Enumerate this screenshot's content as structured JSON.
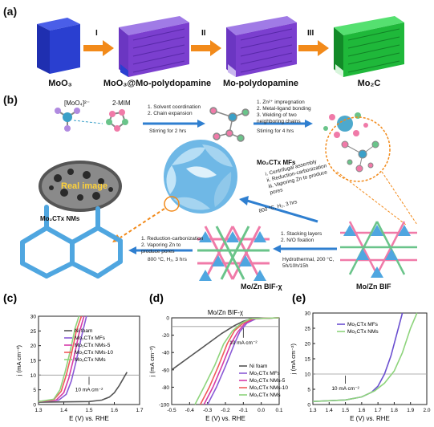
{
  "panel_a": {
    "label": "(a)",
    "steps": [
      {
        "label": "MoO₃",
        "color": "#2a3fd0"
      },
      {
        "label": "MoO₃@Mo-polydopamine",
        "color": "#7b3fcf"
      },
      {
        "label": "Mo-polydopamine",
        "color": "#7b3fcf"
      },
      {
        "label": "Mo₂C",
        "color": "#1fb83a"
      }
    ],
    "arrows": [
      "I",
      "II",
      "III"
    ],
    "arrow_color": "#f28a1a"
  },
  "panel_b": {
    "label": "(b)",
    "mo_ion": "[MoO₄]²⁻",
    "mim": "2-MIM",
    "step1": [
      "1.  Solvent coordination",
      "2.  Chain expansion"
    ],
    "step1_cond": "Stirring for 2 hrs",
    "step2": [
      "1.  Zn²⁺ impregnation",
      "2.  Metal-ligand bonding",
      "3.  Welding of two",
      "     neighboring chains"
    ],
    "step2_cond": "Stirring for 4 hrs",
    "mfs_label": "Mo₂CTx MFs",
    "assembly": [
      "i.  Centrifugal assembly",
      "ii. Reduction-carbonization",
      "iii. Vaporing Zn to produce",
      "     pores"
    ],
    "assembly_cond": "800 °C, H₂, 3 hrs",
    "real_image": "Real image",
    "nms_label": "Mo₂CTx NMs",
    "nms_steps": [
      "1.  Reduction-carbonization",
      "2.  Vaporing Zn to",
      "     produce pores"
    ],
    "nms_cond": "800 °C, H₂, 3 hrs",
    "stack_steps": [
      "1.  Stacking layers",
      "2.  N/O fixation"
    ],
    "hydro": [
      "Hydrothermal, 200 °C,",
      "5h/10h/15h"
    ],
    "bif_x": "Mo/Zn BIF-χ",
    "bif": "Mo/Zn BIF"
  },
  "chart_data": [
    {
      "panel": "(c)",
      "type": "line",
      "xlabel": "E (V) vs. RHE",
      "ylabel": "j (mA cm⁻²)",
      "xlim": [
        1.3,
        1.7
      ],
      "ylim": [
        0,
        30
      ],
      "xticks": [
        "1.3",
        "1.4",
        "1.5",
        "1.6",
        "1.7"
      ],
      "yticks": [
        "0",
        "5",
        "10",
        "15",
        "20",
        "25",
        "30"
      ],
      "ref_line": 10,
      "annotation": "10 mA cm⁻²",
      "series": [
        {
          "name": "Ni foam",
          "color": "#555555",
          "x": [
            1.3,
            1.5,
            1.55,
            1.58,
            1.6,
            1.62,
            1.64,
            1.65
          ],
          "y": [
            0.8,
            1.0,
            1.5,
            2.5,
            4,
            6.5,
            9.5,
            11
          ]
        },
        {
          "name": "Mo₂CTx MFs",
          "color": "#8a5bd6",
          "x": [
            1.3,
            1.38,
            1.41,
            1.43,
            1.45,
            1.47,
            1.49
          ],
          "y": [
            1.0,
            1.5,
            3.5,
            8,
            15,
            23,
            30
          ]
        },
        {
          "name": "Mo₂CTx NMs-5",
          "color": "#d63aa8",
          "x": [
            1.3,
            1.37,
            1.4,
            1.42,
            1.44,
            1.46,
            1.48
          ],
          "y": [
            1.0,
            1.5,
            4,
            9,
            16,
            24,
            30
          ]
        },
        {
          "name": "Mo₂CTx NMs-10",
          "color": "#f05a5a",
          "x": [
            1.3,
            1.36,
            1.39,
            1.41,
            1.43,
            1.45,
            1.47
          ],
          "y": [
            1.0,
            1.6,
            4.5,
            10,
            17,
            25,
            30
          ]
        },
        {
          "name": "Mo₂CTx NMs",
          "color": "#8ed47c",
          "x": [
            1.3,
            1.36,
            1.385,
            1.405,
            1.425,
            1.445,
            1.46
          ],
          "y": [
            1.0,
            1.8,
            5,
            11,
            18,
            26,
            30
          ]
        }
      ]
    },
    {
      "panel": "(d)",
      "type": "line",
      "title": "Mo/Zn BIF-χ",
      "xlabel": "E (V) vs. RHE",
      "ylabel": "j (mA cm⁻²)",
      "xlim": [
        -0.5,
        0.1
      ],
      "ylim": [
        -100,
        0
      ],
      "xticks": [
        "-0.5",
        "-0.4",
        "-0.3",
        "-0.2",
        "-0.1",
        "0.0",
        "0.1"
      ],
      "yticks": [
        "0",
        "-20",
        "-40",
        "-60",
        "-80",
        "-100"
      ],
      "ref_line": -10,
      "annotation": "10 mA cm⁻²",
      "series": [
        {
          "name": "Ni foam",
          "color": "#555555",
          "x": [
            -0.5,
            -0.4,
            -0.3,
            -0.22,
            -0.15,
            -0.1,
            -0.05,
            0.1
          ],
          "y": [
            -60,
            -45,
            -30,
            -18,
            -9,
            -4,
            -1,
            0
          ]
        },
        {
          "name": "Mo₂CTx MFs",
          "color": "#8a5bd6",
          "x": [
            -0.3,
            -0.25,
            -0.2,
            -0.15,
            -0.12,
            -0.08,
            -0.03,
            0.1
          ],
          "y": [
            -100,
            -80,
            -56,
            -30,
            -16,
            -6,
            -1,
            0
          ]
        },
        {
          "name": "Mo₂CTx NMs-5",
          "color": "#d63aa8",
          "x": [
            -0.32,
            -0.27,
            -0.22,
            -0.17,
            -0.13,
            -0.09,
            -0.04,
            0.1
          ],
          "y": [
            -100,
            -80,
            -56,
            -30,
            -16,
            -6,
            -1,
            0
          ]
        },
        {
          "name": "Mo₂CTx NMs-10",
          "color": "#f05a5a",
          "x": [
            -0.34,
            -0.29,
            -0.24,
            -0.19,
            -0.15,
            -0.1,
            -0.05,
            0.1
          ],
          "y": [
            -100,
            -80,
            -56,
            -30,
            -15,
            -6,
            -1,
            0
          ]
        },
        {
          "name": "Mo₂CTx NMs",
          "color": "#8ed47c",
          "x": [
            -0.37,
            -0.32,
            -0.26,
            -0.21,
            -0.16,
            -0.11,
            -0.06,
            0.1
          ],
          "y": [
            -100,
            -80,
            -55,
            -30,
            -15,
            -6,
            -1,
            0
          ]
        }
      ]
    },
    {
      "panel": "(e)",
      "type": "line",
      "xlabel": "E (V) vs. RHE",
      "ylabel": "j (mA cm⁻²)",
      "xlim": [
        1.3,
        2.0
      ],
      "ylim": [
        0,
        30
      ],
      "xticks": [
        "1.3",
        "1.4",
        "1.5",
        "1.6",
        "1.7",
        "1.8",
        "1.9",
        "2.0"
      ],
      "yticks": [
        "0",
        "5",
        "10",
        "15",
        "20",
        "25",
        "30"
      ],
      "ref_line": 10,
      "annotation": "10 mA cm⁻²",
      "series": [
        {
          "name": "Mo₂CTx MFs",
          "color": "#6a4fd0",
          "x": [
            1.3,
            1.5,
            1.6,
            1.66,
            1.7,
            1.74,
            1.78,
            1.82,
            1.85
          ],
          "y": [
            1.0,
            1.5,
            2.5,
            4,
            6,
            10,
            16,
            24,
            30
          ]
        },
        {
          "name": "Mo₂CTx NMs",
          "color": "#8ed47c",
          "x": [
            1.3,
            1.5,
            1.6,
            1.68,
            1.74,
            1.8,
            1.85,
            1.9,
            1.94
          ],
          "y": [
            1.0,
            1.5,
            2.5,
            4.5,
            7,
            11,
            17,
            25,
            30
          ]
        }
      ]
    }
  ]
}
